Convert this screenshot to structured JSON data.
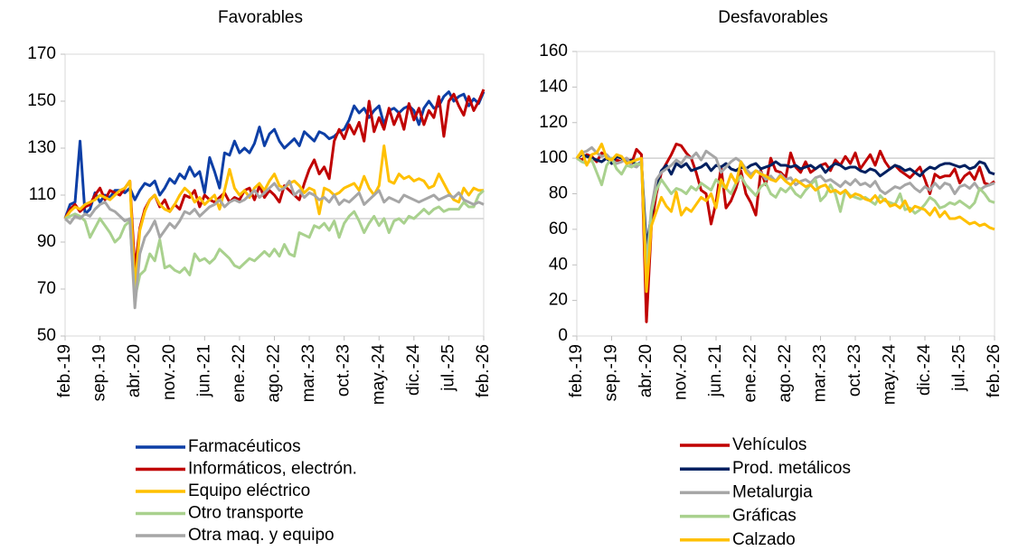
{
  "chart_data": [
    {
      "type": "line",
      "title": "Favorables",
      "categories": [
        "feb.-19",
        null,
        null,
        null,
        null,
        null,
        null,
        "sep.-19",
        null,
        null,
        null,
        null,
        null,
        null,
        "abr.-20",
        null,
        null,
        null,
        null,
        null,
        null,
        "nov.-20",
        null,
        null,
        null,
        null,
        null,
        null,
        "jun.-21",
        null,
        null,
        null,
        null,
        null,
        null,
        "ene.-22",
        null,
        null,
        null,
        null,
        null,
        null,
        "ago.-22",
        null,
        null,
        null,
        null,
        null,
        null,
        "mar.-23",
        null,
        null,
        null,
        null,
        null,
        null,
        "oct.-23",
        null,
        null,
        null,
        null,
        null,
        null,
        "may.-24",
        null,
        null,
        null,
        null,
        null,
        null,
        "dic.-24",
        null,
        null,
        null,
        null,
        null,
        null,
        "jul.-25",
        null,
        null,
        null,
        null,
        null,
        null,
        "feb.-26"
      ],
      "ylim": [
        50,
        170
      ],
      "yticks": [
        50,
        70,
        90,
        110,
        130,
        150,
        170
      ],
      "reference_line": 100,
      "legend": "bottom",
      "series": [
        {
          "name": "Farmacéuticos",
          "color": "#0d3fa6",
          "values": [
            100,
            106,
            107,
            133,
            102,
            104,
            111,
            107,
            110,
            109,
            112,
            112,
            111,
            113,
            108,
            112,
            115,
            114,
            116,
            110,
            113,
            117,
            115,
            119,
            117,
            122,
            118,
            120,
            111,
            126,
            120,
            113,
            128,
            127,
            133,
            128,
            130,
            128,
            132,
            139,
            131,
            136,
            138,
            133,
            130,
            132,
            134,
            131,
            137,
            135,
            133,
            137,
            136,
            134,
            135,
            137,
            138,
            142,
            148,
            145,
            147,
            143,
            146,
            148,
            140,
            146,
            147,
            145,
            147,
            148,
            146,
            140,
            147,
            150,
            147,
            148,
            152,
            154,
            150,
            152,
            153,
            148,
            151,
            149,
            154
          ]
        },
        {
          "name": "Informáticos, electrón.",
          "color": "#c00000",
          "values": [
            100,
            104,
            106,
            103,
            105,
            106,
            110,
            113,
            108,
            112,
            111,
            110,
            113,
            116,
            78,
            96,
            104,
            108,
            110,
            105,
            108,
            103,
            106,
            104,
            110,
            109,
            112,
            105,
            110,
            108,
            107,
            109,
            111,
            107,
            109,
            108,
            112,
            113,
            108,
            114,
            109,
            112,
            110,
            107,
            114,
            112,
            110,
            108,
            115,
            121,
            125,
            119,
            122,
            117,
            133,
            138,
            134,
            140,
            136,
            141,
            133,
            150,
            137,
            143,
            138,
            147,
            140,
            145,
            138,
            149,
            142,
            147,
            140,
            146,
            143,
            152,
            135,
            150,
            153,
            148,
            144,
            152,
            146,
            150,
            155
          ]
        },
        {
          "name": "Equipo eléctrico",
          "color": "#ffc000",
          "values": [
            100,
            103,
            105,
            104,
            106,
            107,
            108,
            110,
            109,
            108,
            110,
            112,
            113,
            116,
            70,
            95,
            103,
            108,
            110,
            106,
            104,
            103,
            106,
            110,
            113,
            111,
            107,
            109,
            106,
            108,
            110,
            104,
            112,
            121,
            113,
            110,
            112,
            109,
            113,
            115,
            112,
            116,
            119,
            114,
            113,
            115,
            116,
            114,
            111,
            113,
            112,
            102,
            113,
            112,
            110,
            111,
            113,
            114,
            115,
            112,
            118,
            113,
            110,
            114,
            131,
            116,
            115,
            119,
            117,
            118,
            116,
            117,
            116,
            113,
            114,
            119,
            115,
            111,
            108,
            107,
            113,
            110,
            113,
            112,
            112
          ]
        },
        {
          "name": "Otro transporte",
          "color": "#a9d18e",
          "values": [
            100,
            101,
            102,
            101,
            99,
            92,
            96,
            100,
            97,
            94,
            90,
            92,
            97,
            99,
            66,
            76,
            78,
            85,
            82,
            91,
            79,
            80,
            78,
            77,
            79,
            76,
            85,
            82,
            83,
            81,
            83,
            87,
            85,
            83,
            80,
            79,
            81,
            83,
            82,
            84,
            86,
            84,
            87,
            84,
            89,
            85,
            84,
            94,
            93,
            92,
            97,
            96,
            98,
            95,
            99,
            92,
            98,
            101,
            103,
            99,
            94,
            98,
            101,
            97,
            100,
            94,
            99,
            100,
            98,
            101,
            100,
            102,
            104,
            102,
            104,
            105,
            103,
            104,
            104,
            104,
            107,
            105,
            105,
            110,
            112
          ]
        },
        {
          "name": "Otra maq. y equipo",
          "color": "#a6a6a6",
          "values": [
            100,
            98,
            101,
            100,
            102,
            101,
            104,
            106,
            107,
            104,
            103,
            101,
            99,
            100,
            62,
            85,
            92,
            95,
            99,
            92,
            95,
            98,
            96,
            99,
            103,
            102,
            104,
            101,
            103,
            105,
            106,
            108,
            105,
            107,
            108,
            107,
            108,
            110,
            112,
            109,
            111,
            113,
            115,
            112,
            113,
            116,
            110,
            112,
            109,
            111,
            110,
            108,
            109,
            107,
            110,
            106,
            108,
            107,
            109,
            111,
            106,
            108,
            110,
            112,
            107,
            109,
            108,
            107,
            110,
            109,
            108,
            107,
            108,
            109,
            110,
            108,
            109,
            110,
            109,
            111,
            108,
            107,
            106,
            107,
            106
          ]
        }
      ]
    },
    {
      "type": "line",
      "title": "Desfavorables",
      "categories": [
        "feb.-19",
        null,
        null,
        null,
        null,
        null,
        null,
        "sep.-19",
        null,
        null,
        null,
        null,
        null,
        null,
        "abr.-20",
        null,
        null,
        null,
        null,
        null,
        null,
        "nov.-20",
        null,
        null,
        null,
        null,
        null,
        null,
        "jun.-21",
        null,
        null,
        null,
        null,
        null,
        null,
        "ene.-22",
        null,
        null,
        null,
        null,
        null,
        null,
        "ago.-22",
        null,
        null,
        null,
        null,
        null,
        null,
        "mar.-23",
        null,
        null,
        null,
        null,
        null,
        null,
        "oct.-23",
        null,
        null,
        null,
        null,
        null,
        null,
        "may.-24",
        null,
        null,
        null,
        null,
        null,
        null,
        "dic.-24",
        null,
        null,
        null,
        null,
        null,
        null,
        "jul.-25",
        null,
        null,
        null,
        null,
        null,
        null,
        "feb.-26"
      ],
      "ylim": [
        0,
        160
      ],
      "yticks": [
        0,
        20,
        40,
        60,
        80,
        100,
        120,
        140,
        160
      ],
      "reference_line": 100,
      "legend": "bottom",
      "series": [
        {
          "name": "Vehículos",
          "color": "#c00000",
          "values": [
            100,
            99,
            102,
            101,
            98,
            103,
            101,
            97,
            99,
            98,
            100,
            97,
            105,
            102,
            8,
            62,
            80,
            92,
            97,
            102,
            108,
            107,
            103,
            100,
            92,
            82,
            80,
            63,
            75,
            95,
            72,
            76,
            83,
            93,
            80,
            75,
            68,
            93,
            85,
            100,
            93,
            92,
            89,
            103,
            95,
            92,
            98,
            92,
            94,
            96,
            97,
            93,
            99,
            96,
            101,
            97,
            103,
            94,
            98,
            102,
            96,
            104,
            98,
            94,
            96,
            93,
            91,
            89,
            92,
            95,
            88,
            80,
            91,
            89,
            90,
            90,
            94,
            86,
            90,
            92,
            88,
            95,
            86,
            85,
            87
          ]
        },
        {
          "name": "Prod. metálicos",
          "color": "#002060",
          "values": [
            100,
            102,
            101,
            100,
            99,
            98,
            100,
            97,
            101,
            100,
            98,
            99,
            96,
            98,
            50,
            68,
            85,
            93,
            96,
            91,
            97,
            95,
            97,
            93,
            94,
            95,
            97,
            93,
            96,
            95,
            97,
            94,
            93,
            95,
            94,
            96,
            97,
            94,
            95,
            96,
            98,
            96,
            96,
            95,
            96,
            94,
            95,
            96,
            94,
            96,
            92,
            95,
            97,
            96,
            94,
            95,
            95,
            93,
            92,
            94,
            93,
            90,
            92,
            94,
            96,
            95,
            93,
            94,
            92,
            90,
            93,
            95,
            94,
            96,
            97,
            97,
            96,
            95,
            96,
            94,
            95,
            98,
            97,
            92,
            91
          ]
        },
        {
          "name": "Metalurgia",
          "color": "#a6a6a6",
          "values": [
            100,
            103,
            104,
            106,
            103,
            101,
            102,
            99,
            97,
            98,
            100,
            96,
            95,
            98,
            40,
            72,
            88,
            92,
            94,
            96,
            99,
            97,
            101,
            100,
            103,
            99,
            104,
            102,
            100,
            92,
            95,
            98,
            100,
            98,
            94,
            91,
            93,
            92,
            88,
            90,
            87,
            91,
            88,
            89,
            85,
            87,
            88,
            86,
            89,
            90,
            87,
            88,
            86,
            84,
            87,
            85,
            88,
            85,
            86,
            84,
            87,
            82,
            80,
            82,
            84,
            83,
            85,
            86,
            83,
            81,
            84,
            82,
            86,
            83,
            86,
            85,
            80,
            84,
            85,
            83,
            86,
            82,
            84,
            85,
            86
          ]
        },
        {
          "name": "Gráficas",
          "color": "#a9d18e",
          "values": [
            100,
            98,
            97,
            99,
            92,
            85,
            96,
            100,
            94,
            91,
            96,
            95,
            97,
            96,
            35,
            70,
            82,
            88,
            84,
            80,
            83,
            82,
            80,
            84,
            82,
            86,
            84,
            82,
            88,
            85,
            83,
            80,
            86,
            90,
            85,
            82,
            79,
            84,
            86,
            80,
            78,
            83,
            81,
            84,
            80,
            78,
            82,
            85,
            88,
            76,
            79,
            85,
            80,
            70,
            82,
            79,
            78,
            77,
            78,
            76,
            74,
            79,
            76,
            75,
            74,
            80,
            71,
            72,
            69,
            71,
            74,
            78,
            76,
            72,
            73,
            75,
            74,
            76,
            74,
            72,
            75,
            83,
            80,
            76,
            75
          ]
        },
        {
          "name": "Calzado",
          "color": "#ffc000",
          "values": [
            100,
            104,
            96,
            102,
            103,
            108,
            100,
            99,
            102,
            101,
            97,
            98,
            99,
            100,
            25,
            62,
            70,
            78,
            73,
            70,
            81,
            68,
            72,
            70,
            74,
            78,
            76,
            80,
            72,
            88,
            83,
            91,
            86,
            98,
            92,
            89,
            93,
            91,
            90,
            88,
            87,
            90,
            87,
            85,
            88,
            86,
            84,
            85,
            82,
            84,
            85,
            81,
            82,
            80,
            82,
            78,
            80,
            79,
            77,
            76,
            79,
            75,
            77,
            73,
            74,
            72,
            76,
            70,
            73,
            72,
            71,
            68,
            72,
            67,
            70,
            66,
            66,
            67,
            65,
            63,
            64,
            62,
            63,
            61,
            60
          ]
        }
      ]
    }
  ]
}
